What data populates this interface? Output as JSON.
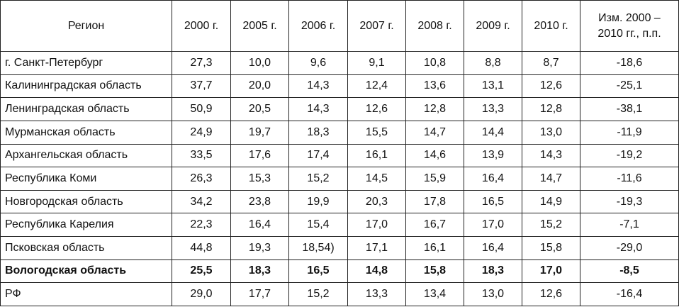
{
  "table": {
    "header": [
      "Регион",
      "2000 г.",
      "2005 г.",
      "2006 г.",
      "2007 г.",
      "2008 г.",
      "2009 г.",
      "2010 г.",
      "Изм. 2000 –\n2010 гг., п.п."
    ],
    "rows": [
      [
        "г. Санкт-Петербург",
        "27,3",
        "10,0",
        "9,6",
        "9,1",
        "10,8",
        "8,8",
        "8,7",
        "-18,6"
      ],
      [
        "Калининградская область",
        "37,7",
        "20,0",
        "14,3",
        "12,4",
        "13,6",
        "13,1",
        "12,6",
        "-25,1"
      ],
      [
        "Ленинградская область",
        "50,9",
        "20,5",
        "14,3",
        "12,6",
        "12,8",
        "13,3",
        "12,8",
        "-38,1"
      ],
      [
        "Мурманская область",
        "24,9",
        "19,7",
        "18,3",
        "15,5",
        "14,7",
        "14,4",
        "13,0",
        "-11,9"
      ],
      [
        "Архангельская область",
        "33,5",
        "17,6",
        "17,4",
        "16,1",
        "14,6",
        "13,9",
        "14,3",
        "-19,2"
      ],
      [
        "Республика Коми",
        "26,3",
        "15,3",
        "15,2",
        "14,5",
        "15,9",
        "16,4",
        "14,7",
        "-11,6"
      ],
      [
        "Новгородская область",
        "34,2",
        "23,8",
        "19,9",
        "20,3",
        "17,8",
        "16,5",
        "14,9",
        "-19,3"
      ],
      [
        "Республика Карелия",
        "22,3",
        "16,4",
        "15,4",
        "17,0",
        "16,7",
        "17,0",
        "15,2",
        "-7,1"
      ],
      [
        "Псковская область",
        "44,8",
        "19,3",
        "18,54)",
        "17,1",
        "16,1",
        "16,4",
        "15,8",
        "-29,0"
      ],
      [
        "Вологодская область",
        "25,5",
        "18,3",
        "16,5",
        "14,8",
        "15,8",
        "18,3",
        "17,0",
        "-8,5"
      ],
      [
        "РФ",
        "29,0",
        "17,7",
        "15,2",
        "13,3",
        "13,4",
        "13,0",
        "12,6",
        "-16,4"
      ]
    ]
  }
}
